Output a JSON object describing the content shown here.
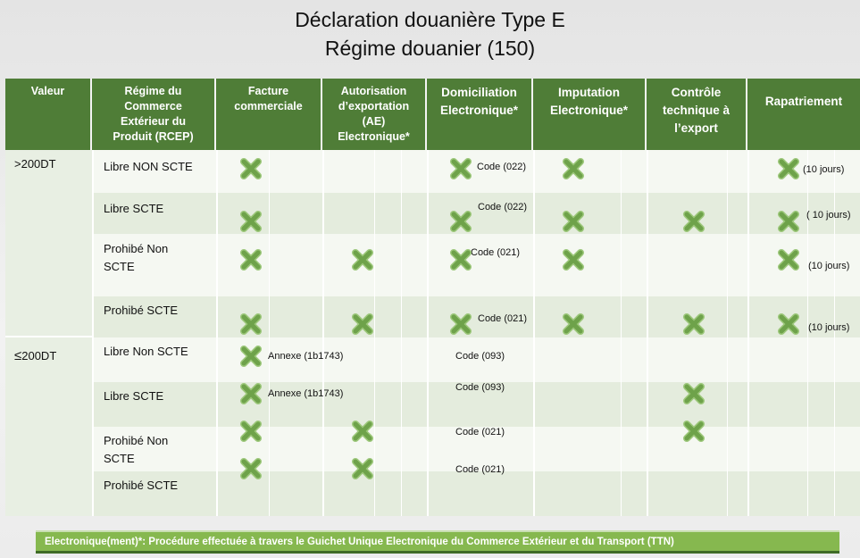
{
  "title": {
    "line1": "Déclaration douanière Type E",
    "line2": "Régime douanier (150)"
  },
  "columns": {
    "valeur": "Valeur",
    "rcep": "Régime du Commerce Extérieur du Produit (RCEP)",
    "facture": "Facture commerciale",
    "ae": "Autorisation d’exportation (AE) Electronique*",
    "domiciliation": "Domiciliation Electronique*",
    "imputation": "Imputation Electronique*",
    "controle": "Contrôle technique à l’export",
    "rapatriement": "Rapatriement"
  },
  "groups": [
    {
      "symbol": ">",
      "value": "200DT"
    },
    {
      "symbol": "≤",
      "value": "200DT"
    }
  ],
  "rows": [
    {
      "rcep": "Libre  NON SCTE",
      "domiciliation_note": "Code (022)",
      "rapatriement_note": "(10 jours)"
    },
    {
      "rcep": "Libre SCTE",
      "domiciliation_note": "Code (022)",
      "rapatriement_note": "( 10 jours)"
    },
    {
      "rcep": "Prohibé Non SCTE",
      "domiciliation_note": "Code (021)",
      "rapatriement_note": "(10 jours)"
    },
    {
      "rcep": "Prohibé SCTE",
      "domiciliation_note": "Code (021)",
      "rapatriement_note": "(10 jours)"
    },
    {
      "rcep": "Libre Non SCTE",
      "facture_note": "Annexe (1b1743)",
      "domiciliation_note": "Code (093)"
    },
    {
      "rcep": "Libre SCTE",
      "facture_note": "Annexe (1b1743)",
      "domiciliation_note": "Code (093)"
    },
    {
      "rcep": "Prohibé Non SCTE",
      "domiciliation_note": "Code (021)"
    },
    {
      "rcep": "Prohibé SCTE",
      "domiciliation_note": "Code (021)"
    }
  ],
  "marks": {
    "row0": [
      "facture",
      "domiciliation",
      "imputation",
      "rapatriement"
    ],
    "row1": [
      "facture",
      "domiciliation",
      "imputation",
      "controle",
      "rapatriement"
    ],
    "row2": [
      "facture",
      "ae",
      "domiciliation",
      "imputation",
      "rapatriement"
    ],
    "row3": [
      "facture",
      "ae",
      "domiciliation",
      "imputation",
      "controle",
      "rapatriement"
    ],
    "row4": [
      "facture"
    ],
    "row5": [
      "facture",
      "controle"
    ],
    "row6": [
      "facture",
      "ae",
      "controle"
    ],
    "row7": [
      "facture",
      "ae"
    ]
  },
  "mark_icon": "green-x-icon",
  "colors": {
    "header": "#4f7d37",
    "mark": "#6ea24a",
    "footer": "#86b84f"
  },
  "footer": "Electronique(ment)*: Procédure effectuée à travers le Guichet Unique Electronique du Commerce Extérieur et du Transport (TTN)"
}
